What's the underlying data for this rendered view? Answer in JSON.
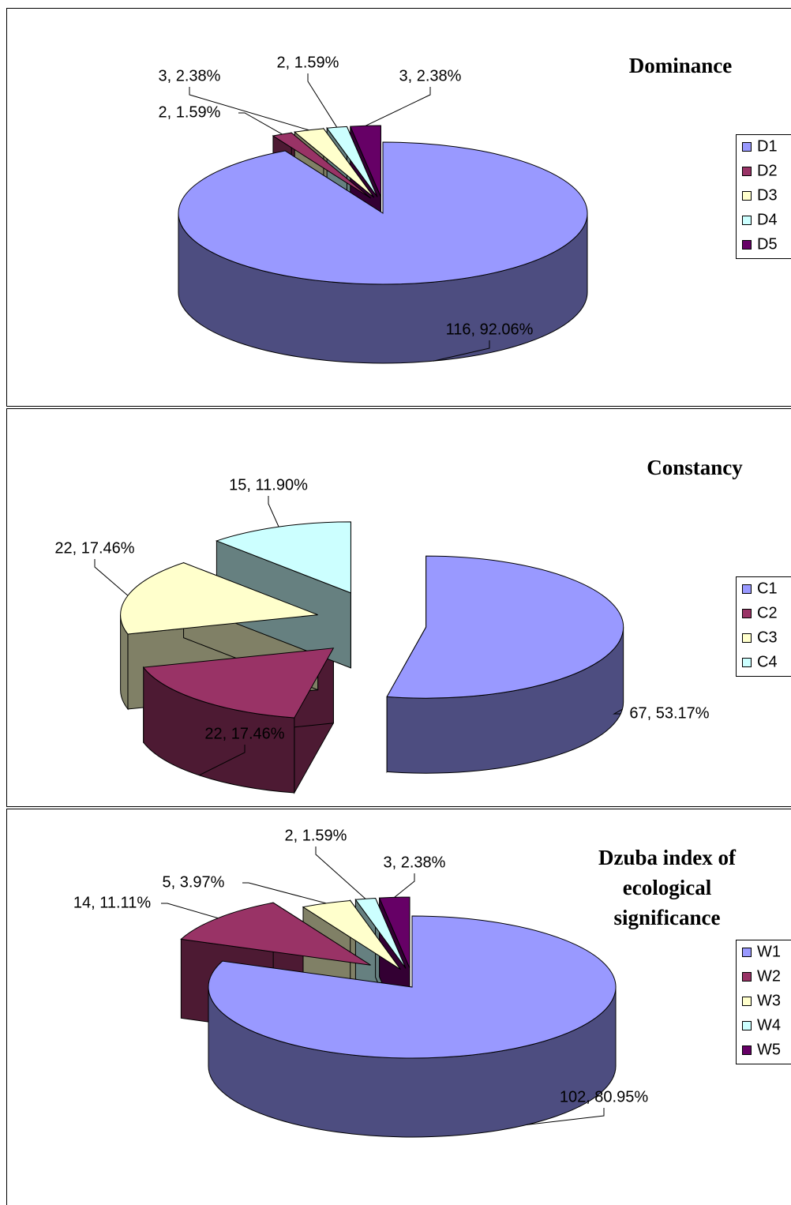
{
  "chart_data": [
    {
      "type": "pie",
      "title": "Dominance",
      "categories": [
        "D1",
        "D2",
        "D3",
        "D4",
        "D5"
      ],
      "values": [
        116,
        2,
        3,
        2,
        3
      ],
      "value_labels": [
        "116, 92.06%",
        "2, 1.59%",
        "3, 2.38%",
        "2, 1.59%",
        "3, 2.38%"
      ],
      "colors": [
        "#9999ff",
        "#993366",
        "#ffffcc",
        "#ccffff",
        "#660066"
      ]
    },
    {
      "type": "pie",
      "title": "Constancy",
      "categories": [
        "C1",
        "C2",
        "C3",
        "C4"
      ],
      "values": [
        67,
        22,
        22,
        15
      ],
      "value_labels": [
        "67, 53.17%",
        "22, 17.46%",
        "22, 17.46%",
        "15, 11.90%"
      ],
      "colors": [
        "#9999ff",
        "#993366",
        "#ffffcc",
        "#ccffff"
      ]
    },
    {
      "type": "pie",
      "title": "Dzuba index of ecological significance",
      "categories": [
        "W1",
        "W2",
        "W3",
        "W4",
        "W5"
      ],
      "values": [
        102,
        14,
        5,
        2,
        3
      ],
      "value_labels": [
        "102, 80.95%",
        "14, 11.11%",
        "5, 3.97%",
        "2, 1.59%",
        "3, 2.38%"
      ],
      "colors": [
        "#9999ff",
        "#993366",
        "#ffffcc",
        "#ccffff",
        "#660066"
      ]
    }
  ]
}
